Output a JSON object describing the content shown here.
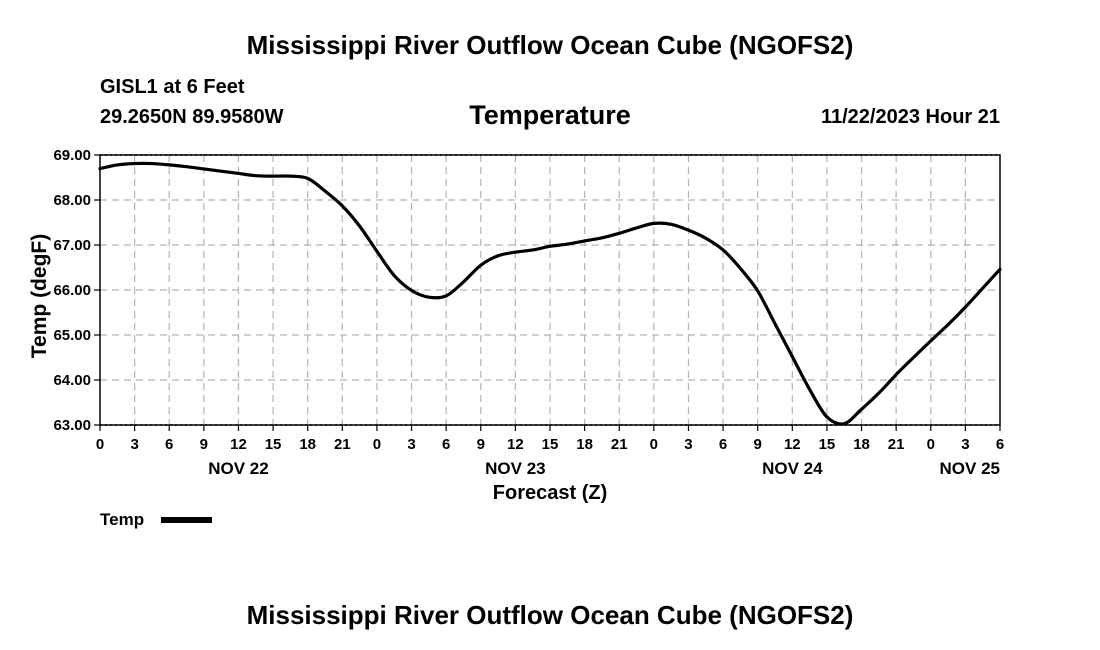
{
  "title_top": "Mississippi River Outflow Ocean Cube (NGOFS2)",
  "title_bottom": "Mississippi River Outflow Ocean Cube (NGOFS2)",
  "station": {
    "name": "GISL1 at 6 Feet",
    "coords": "29.2650N  89.9580W",
    "timestamp": "11/22/2023 Hour 21"
  },
  "colors": {
    "line": "#000000",
    "grid": "#b4b4b4",
    "background": "#ffffff"
  },
  "chart_data": {
    "type": "line",
    "title": "Temperature",
    "xlabel": "Forecast (Z)",
    "ylabel": "Temp (degF)",
    "ylim": [
      63.0,
      69.0
    ],
    "xlim_hours": [
      0,
      78
    ],
    "grid": true,
    "y_ticks": [
      "63.00",
      "64.00",
      "65.00",
      "66.00",
      "67.00",
      "68.00",
      "69.00"
    ],
    "x_tick_labels": [
      "0",
      "3",
      "6",
      "9",
      "12",
      "15",
      "18",
      "21",
      "0",
      "3",
      "6",
      "9",
      "12",
      "15",
      "18",
      "21",
      "0",
      "3",
      "6",
      "9",
      "12",
      "15",
      "18",
      "21",
      "0",
      "3",
      "6"
    ],
    "day_labels": [
      {
        "hour": 12,
        "label": "NOV 22"
      },
      {
        "hour": 36,
        "label": "NOV 23"
      },
      {
        "hour": 60,
        "label": "NOV 24"
      },
      {
        "hour": 78,
        "label": "NOV 25"
      }
    ],
    "legend": {
      "position": "bottom-left",
      "entries": [
        "Temp"
      ]
    },
    "series": [
      {
        "name": "Temp",
        "x": [
          0,
          1.5,
          3,
          4.5,
          6,
          7.5,
          9,
          10.5,
          12,
          13.5,
          15,
          16.5,
          18,
          19.5,
          21,
          22.5,
          24,
          25.5,
          27,
          28.5,
          30,
          31.5,
          33,
          34.5,
          36,
          37.5,
          39,
          40.5,
          42,
          43.5,
          45,
          46.5,
          48,
          49.5,
          51,
          52.5,
          54,
          55.5,
          57,
          58.5,
          60,
          61.5,
          63,
          64.5,
          66,
          67.5,
          69,
          70.5,
          72,
          73.5,
          75,
          76.5,
          78
        ],
        "values": [
          68.7,
          68.78,
          68.81,
          68.81,
          68.78,
          68.74,
          68.69,
          68.64,
          68.59,
          68.54,
          68.53,
          68.53,
          68.48,
          68.2,
          67.87,
          67.42,
          66.86,
          66.32,
          65.99,
          65.84,
          65.87,
          66.18,
          66.55,
          66.76,
          66.84,
          66.89,
          66.97,
          67.02,
          67.09,
          67.16,
          67.26,
          67.38,
          67.48,
          67.46,
          67.33,
          67.15,
          66.89,
          66.48,
          65.98,
          65.25,
          64.52,
          63.79,
          63.18,
          63.03,
          63.35,
          63.71,
          64.12,
          64.5,
          64.87,
          65.23,
          65.62,
          66.04,
          66.46
        ]
      }
    ]
  }
}
